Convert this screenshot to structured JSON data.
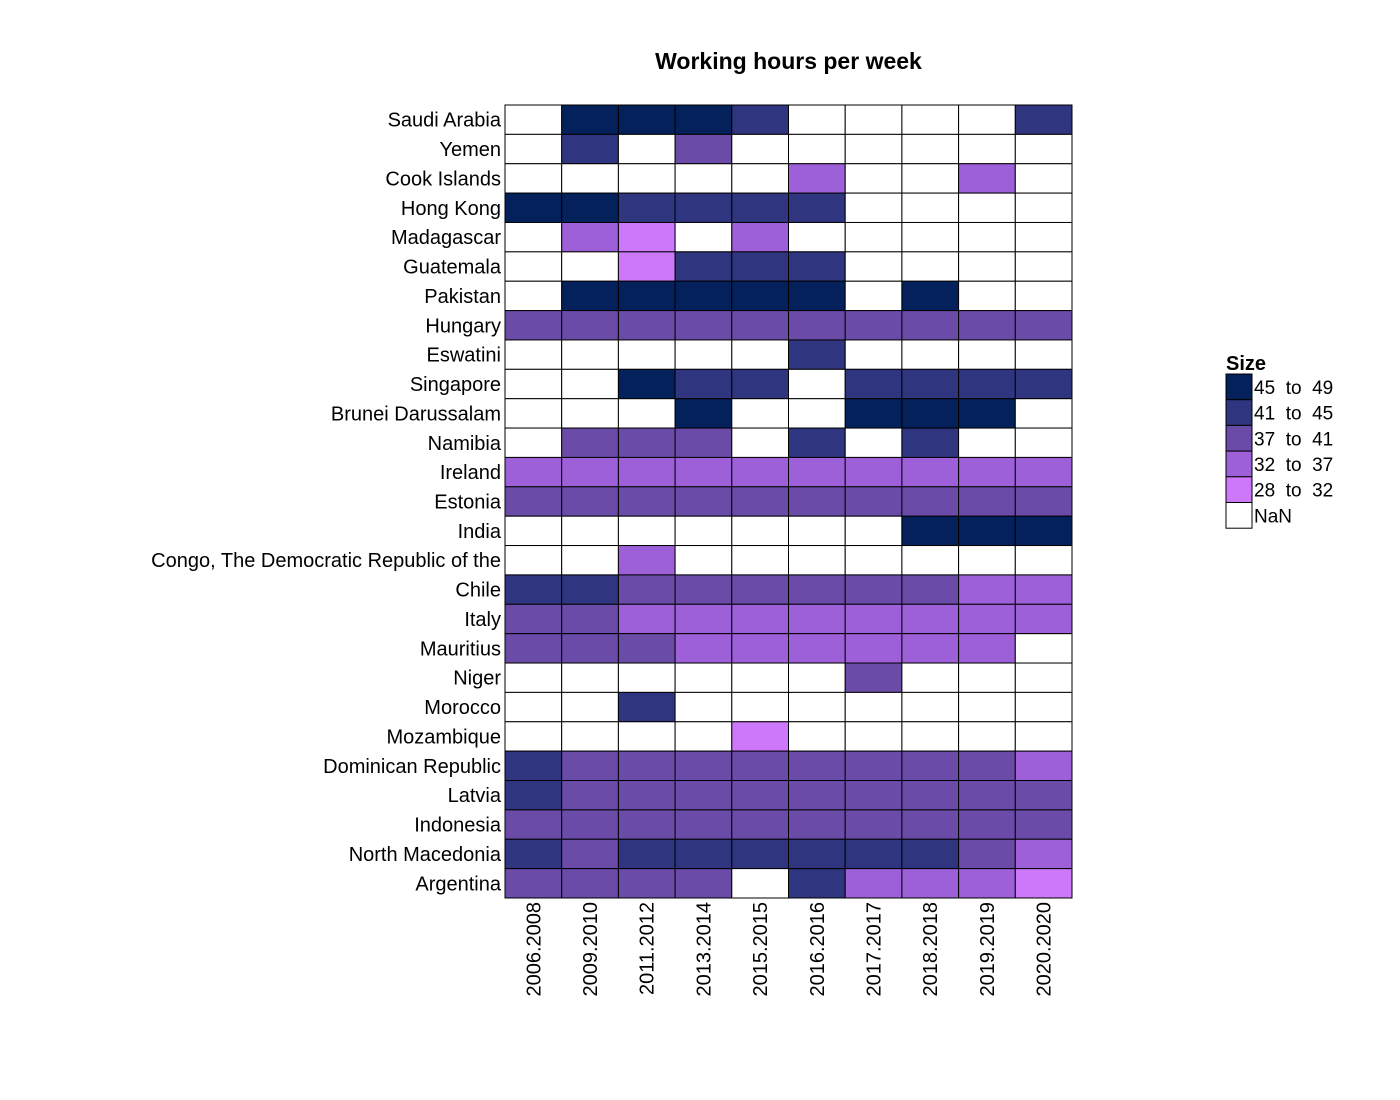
{
  "chart_data": {
    "type": "heatmap",
    "title": "Working hours per week",
    "xlabel": "",
    "ylabel": "",
    "x_categories": [
      "2006.2008",
      "2009.2010",
      "2011.2012",
      "2013.2014",
      "2015.2015",
      "2016.2016",
      "2017.2017",
      "2018.2018",
      "2019.2019",
      "2020.2020"
    ],
    "y_categories": [
      "Saudi Arabia",
      "Yemen",
      "Cook Islands",
      "Hong Kong",
      "Madagascar",
      "Guatemala",
      "Pakistan",
      "Hungary",
      "Eswatini",
      "Singapore",
      "Brunei Darussalam",
      "Namibia",
      "Ireland",
      "Estonia",
      "India",
      "Congo, The Democratic Republic of the",
      "Chile",
      "Italy",
      "Mauritius",
      "Niger",
      "Morocco",
      "Mozambique",
      "Dominican Republic",
      "Latvia",
      "Indonesia",
      "North Macedonia",
      "Argentina"
    ],
    "legend": {
      "title": "Size",
      "position": "right",
      "bins": [
        {
          "label": "45  to  49",
          "color": "#04215b"
        },
        {
          "label": "41  to  45",
          "color": "#303580"
        },
        {
          "label": "37  to  41",
          "color": "#6a4ba8"
        },
        {
          "label": "32  to  37",
          "color": "#9e60d8"
        },
        {
          "label": "28  to  32",
          "color": "#cd77fb"
        },
        {
          "label": "NaN",
          "color": "#ffffff"
        }
      ]
    },
    "bin_codes": [
      [
        5,
        0,
        0,
        0,
        1,
        5,
        5,
        5,
        5,
        1
      ],
      [
        5,
        1,
        5,
        2,
        5,
        5,
        5,
        5,
        5,
        5
      ],
      [
        5,
        5,
        5,
        5,
        5,
        3,
        5,
        5,
        3,
        5
      ],
      [
        0,
        0,
        1,
        1,
        1,
        1,
        5,
        5,
        5,
        5
      ],
      [
        5,
        3,
        4,
        5,
        3,
        5,
        5,
        5,
        5,
        5
      ],
      [
        5,
        5,
        4,
        1,
        1,
        1,
        5,
        5,
        5,
        5
      ],
      [
        5,
        0,
        0,
        0,
        0,
        0,
        5,
        0,
        5,
        5
      ],
      [
        2,
        2,
        2,
        2,
        2,
        2,
        2,
        2,
        2,
        2
      ],
      [
        5,
        5,
        5,
        5,
        5,
        1,
        5,
        5,
        5,
        5
      ],
      [
        5,
        5,
        0,
        1,
        1,
        5,
        1,
        1,
        1,
        1
      ],
      [
        5,
        5,
        5,
        0,
        5,
        5,
        0,
        0,
        0,
        5
      ],
      [
        5,
        2,
        2,
        2,
        5,
        1,
        5,
        1,
        5,
        5
      ],
      [
        3,
        3,
        3,
        3,
        3,
        3,
        3,
        3,
        3,
        3
      ],
      [
        2,
        2,
        2,
        2,
        2,
        2,
        2,
        2,
        2,
        2
      ],
      [
        5,
        5,
        5,
        5,
        5,
        5,
        5,
        0,
        0,
        0
      ],
      [
        5,
        5,
        3,
        5,
        5,
        5,
        5,
        5,
        5,
        5
      ],
      [
        1,
        1,
        2,
        2,
        2,
        2,
        2,
        2,
        3,
        3
      ],
      [
        2,
        2,
        3,
        3,
        3,
        3,
        3,
        3,
        3,
        3
      ],
      [
        2,
        2,
        2,
        3,
        3,
        3,
        3,
        3,
        3,
        5
      ],
      [
        5,
        5,
        5,
        5,
        5,
        5,
        2,
        5,
        5,
        5
      ],
      [
        5,
        5,
        1,
        5,
        5,
        5,
        5,
        5,
        5,
        5
      ],
      [
        5,
        5,
        5,
        5,
        4,
        5,
        5,
        5,
        5,
        5
      ],
      [
        1,
        2,
        2,
        2,
        2,
        2,
        2,
        2,
        2,
        3
      ],
      [
        1,
        2,
        2,
        2,
        2,
        2,
        2,
        2,
        2,
        2
      ],
      [
        2,
        2,
        2,
        2,
        2,
        2,
        2,
        2,
        2,
        2
      ],
      [
        1,
        2,
        1,
        1,
        1,
        1,
        1,
        1,
        2,
        3
      ],
      [
        2,
        2,
        2,
        2,
        5,
        1,
        3,
        3,
        3,
        4
      ]
    ],
    "grid": false
  }
}
